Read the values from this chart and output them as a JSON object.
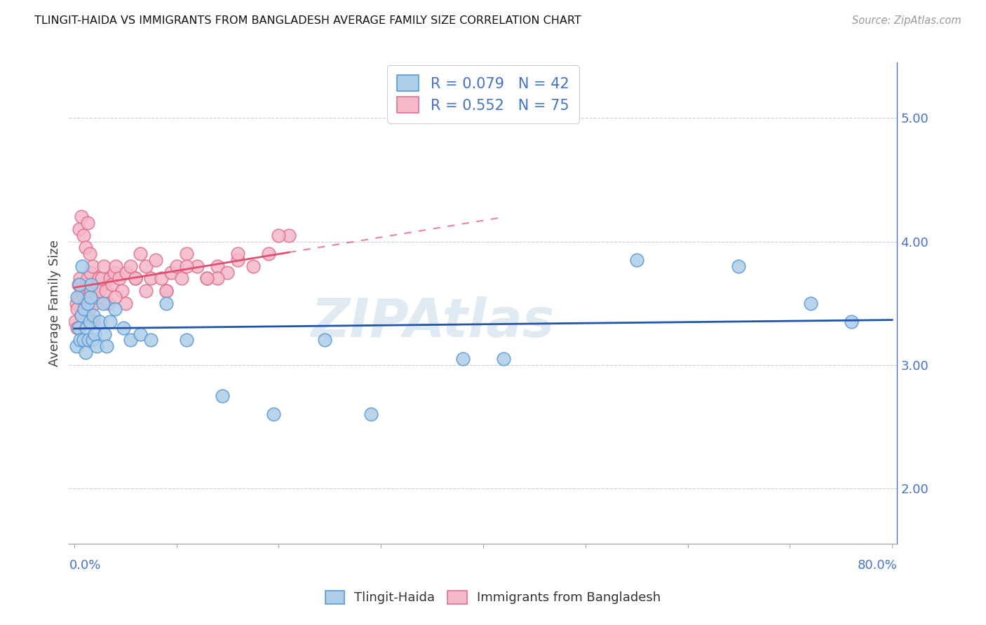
{
  "title": "TLINGIT-HAIDA VS IMMIGRANTS FROM BANGLADESH AVERAGE FAMILY SIZE CORRELATION CHART",
  "source": "Source: ZipAtlas.com",
  "ylabel": "Average Family Size",
  "color_blue_fill": "#aecde8",
  "color_blue_edge": "#5b9bd5",
  "color_pink_fill": "#f4b8c8",
  "color_pink_edge": "#e07090",
  "color_blue_line": "#2255aa",
  "color_pink_line": "#e05070",
  "color_grid": "#cccccc",
  "color_axis": "#4472c4",
  "watermark_color": "#c8dae8",
  "yticks": [
    2.0,
    3.0,
    4.0,
    5.0
  ],
  "ytick_labels": [
    "2.00",
    "3.00",
    "4.00",
    "5.00"
  ],
  "legend1_text": "R = 0.079   N = 42",
  "legend2_text": "R = 0.552   N = 75",
  "bottom_legend1": "Tlingit-Haida",
  "bottom_legend2": "Immigrants from Bangladesh",
  "xlim": [
    -0.005,
    0.805
  ],
  "ylim": [
    1.55,
    5.45
  ],
  "tlingit_x": [
    0.002,
    0.003,
    0.004,
    0.005,
    0.006,
    0.007,
    0.008,
    0.009,
    0.01,
    0.011,
    0.012,
    0.013,
    0.014,
    0.015,
    0.016,
    0.017,
    0.018,
    0.019,
    0.02,
    0.022,
    0.025,
    0.028,
    0.03,
    0.032,
    0.035,
    0.04,
    0.048,
    0.055,
    0.065,
    0.075,
    0.09,
    0.11,
    0.145,
    0.195,
    0.245,
    0.29,
    0.38,
    0.42,
    0.55,
    0.65,
    0.72,
    0.76
  ],
  "tlingit_y": [
    3.15,
    3.55,
    3.3,
    3.65,
    3.2,
    3.4,
    3.8,
    3.2,
    3.45,
    3.1,
    3.3,
    3.5,
    3.2,
    3.35,
    3.55,
    3.65,
    3.2,
    3.4,
    3.25,
    3.15,
    3.35,
    3.5,
    3.25,
    3.15,
    3.35,
    3.45,
    3.3,
    3.2,
    3.25,
    3.2,
    3.5,
    3.2,
    2.75,
    2.6,
    3.2,
    2.6,
    3.05,
    3.05,
    3.85,
    3.8,
    3.5,
    3.35
  ],
  "bangladesh_x": [
    0.001,
    0.002,
    0.003,
    0.004,
    0.005,
    0.006,
    0.007,
    0.008,
    0.009,
    0.01,
    0.011,
    0.012,
    0.013,
    0.014,
    0.015,
    0.016,
    0.017,
    0.018,
    0.019,
    0.02,
    0.021,
    0.022,
    0.023,
    0.024,
    0.025,
    0.027,
    0.029,
    0.031,
    0.033,
    0.035,
    0.037,
    0.039,
    0.041,
    0.044,
    0.047,
    0.051,
    0.055,
    0.06,
    0.065,
    0.07,
    0.075,
    0.08,
    0.085,
    0.09,
    0.095,
    0.1,
    0.105,
    0.11,
    0.12,
    0.13,
    0.14,
    0.15,
    0.16,
    0.175,
    0.19,
    0.21,
    0.005,
    0.007,
    0.009,
    0.011,
    0.013,
    0.015,
    0.003,
    0.07,
    0.05,
    0.11,
    0.14,
    0.16,
    0.2,
    0.13,
    0.09,
    0.06,
    0.04
  ],
  "bangladesh_y": [
    3.35,
    3.5,
    3.45,
    3.65,
    3.55,
    3.7,
    3.4,
    3.6,
    3.55,
    3.45,
    3.5,
    3.65,
    3.7,
    3.55,
    3.45,
    3.75,
    3.6,
    3.8,
    3.35,
    3.5,
    3.6,
    3.55,
    3.65,
    3.7,
    3.6,
    3.7,
    3.8,
    3.6,
    3.5,
    3.7,
    3.65,
    3.75,
    3.8,
    3.7,
    3.6,
    3.75,
    3.8,
    3.7,
    3.9,
    3.8,
    3.7,
    3.85,
    3.7,
    3.6,
    3.75,
    3.8,
    3.7,
    3.9,
    3.8,
    3.7,
    3.8,
    3.75,
    3.85,
    3.8,
    3.9,
    4.05,
    4.1,
    4.2,
    4.05,
    3.95,
    4.15,
    3.9,
    3.3,
    3.6,
    3.5,
    3.8,
    3.7,
    3.9,
    4.05,
    3.7,
    3.6,
    3.7,
    3.55
  ]
}
